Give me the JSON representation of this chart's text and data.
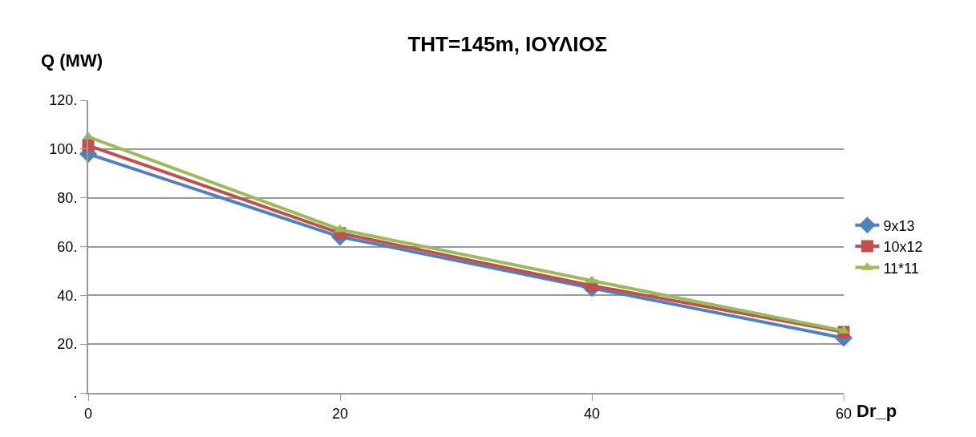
{
  "chart_data": {
    "type": "line",
    "title": "THT=145m, ΙΟΥΛΙΟΣ",
    "xlabel": "Dr_p",
    "ylabel": "Q (MW)",
    "x": [
      0,
      20,
      40,
      60
    ],
    "series": [
      {
        "name": "9x13",
        "color": "#4f81bd",
        "marker": "diamond",
        "values": [
          98,
          64,
          43,
          22.5
        ]
      },
      {
        "name": "10x12",
        "color": "#c0504d",
        "marker": "square",
        "values": [
          101.5,
          65.5,
          44,
          25
        ]
      },
      {
        "name": "11*11",
        "color": "#9bbb59",
        "marker": "triangle",
        "values": [
          105,
          67,
          46,
          25.5
        ]
      }
    ],
    "xlim": [
      0,
      60
    ],
    "xticks": [
      0,
      20,
      40,
      60
    ],
    "ylim": [
      0,
      120
    ],
    "yticks": [
      {
        "value": 0,
        "label": "."
      },
      {
        "value": 20,
        "label": "20."
      },
      {
        "value": 40,
        "label": "40."
      },
      {
        "value": 60,
        "label": "60."
      },
      {
        "value": 80,
        "label": "80."
      },
      {
        "value": 100,
        "label": "100."
      },
      {
        "value": 120,
        "label": "120."
      }
    ],
    "grid": "y",
    "legend": "right",
    "line_style": "solid"
  }
}
